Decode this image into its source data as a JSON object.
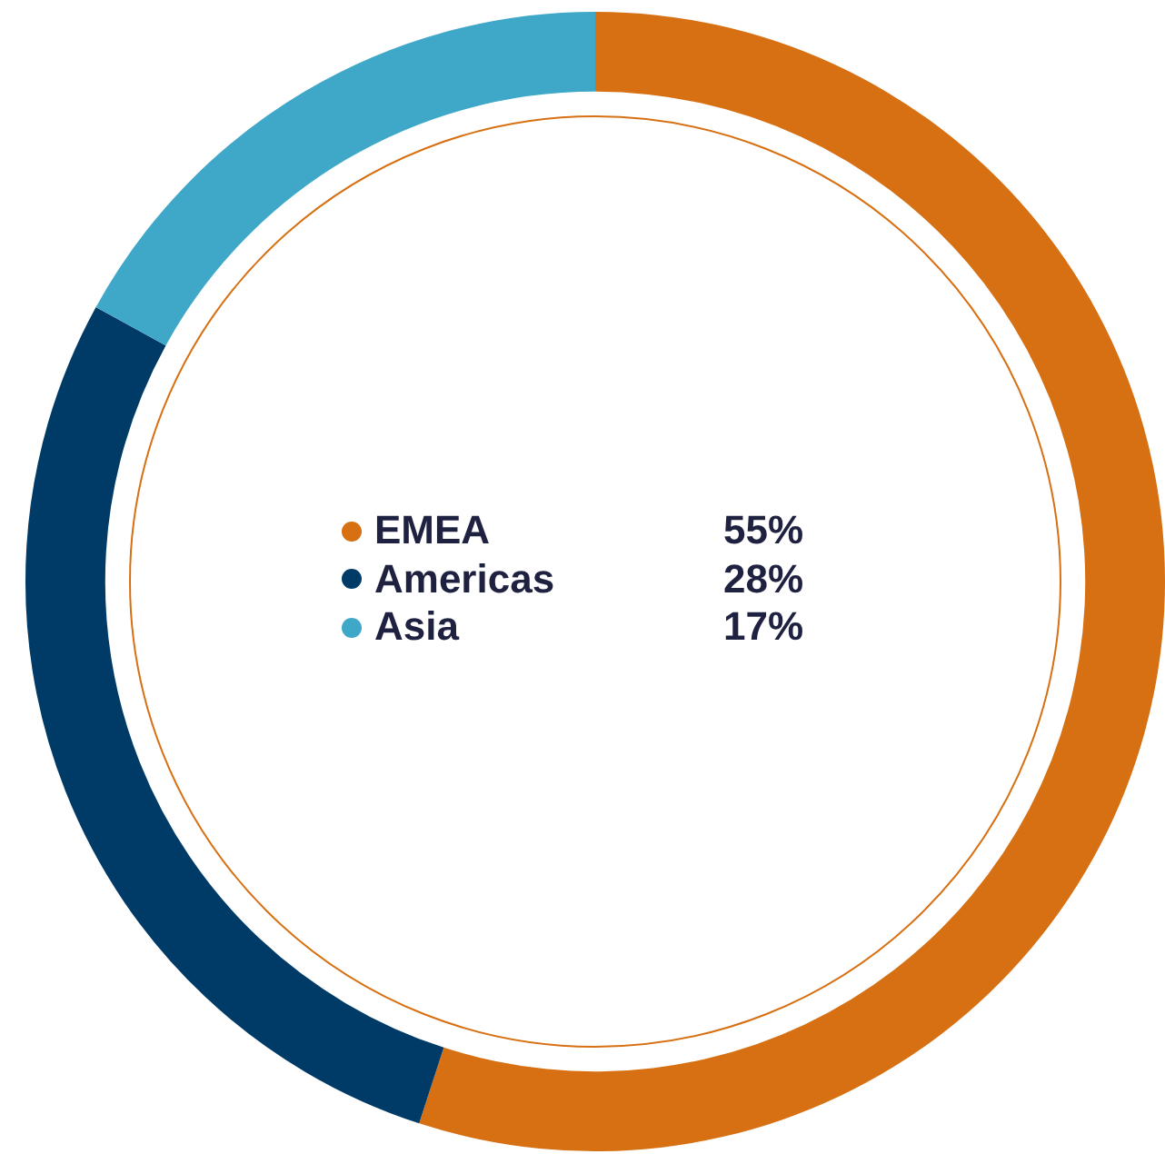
{
  "chart_data": {
    "type": "donut",
    "categories": [
      "EMEA",
      "Americas",
      "Asia"
    ],
    "values": [
      55,
      28,
      17
    ],
    "value_labels": [
      "55%",
      "28%",
      "17%"
    ],
    "colors": [
      "#d77012",
      "#003b68",
      "#3fa8c8"
    ],
    "legend": "center"
  }
}
